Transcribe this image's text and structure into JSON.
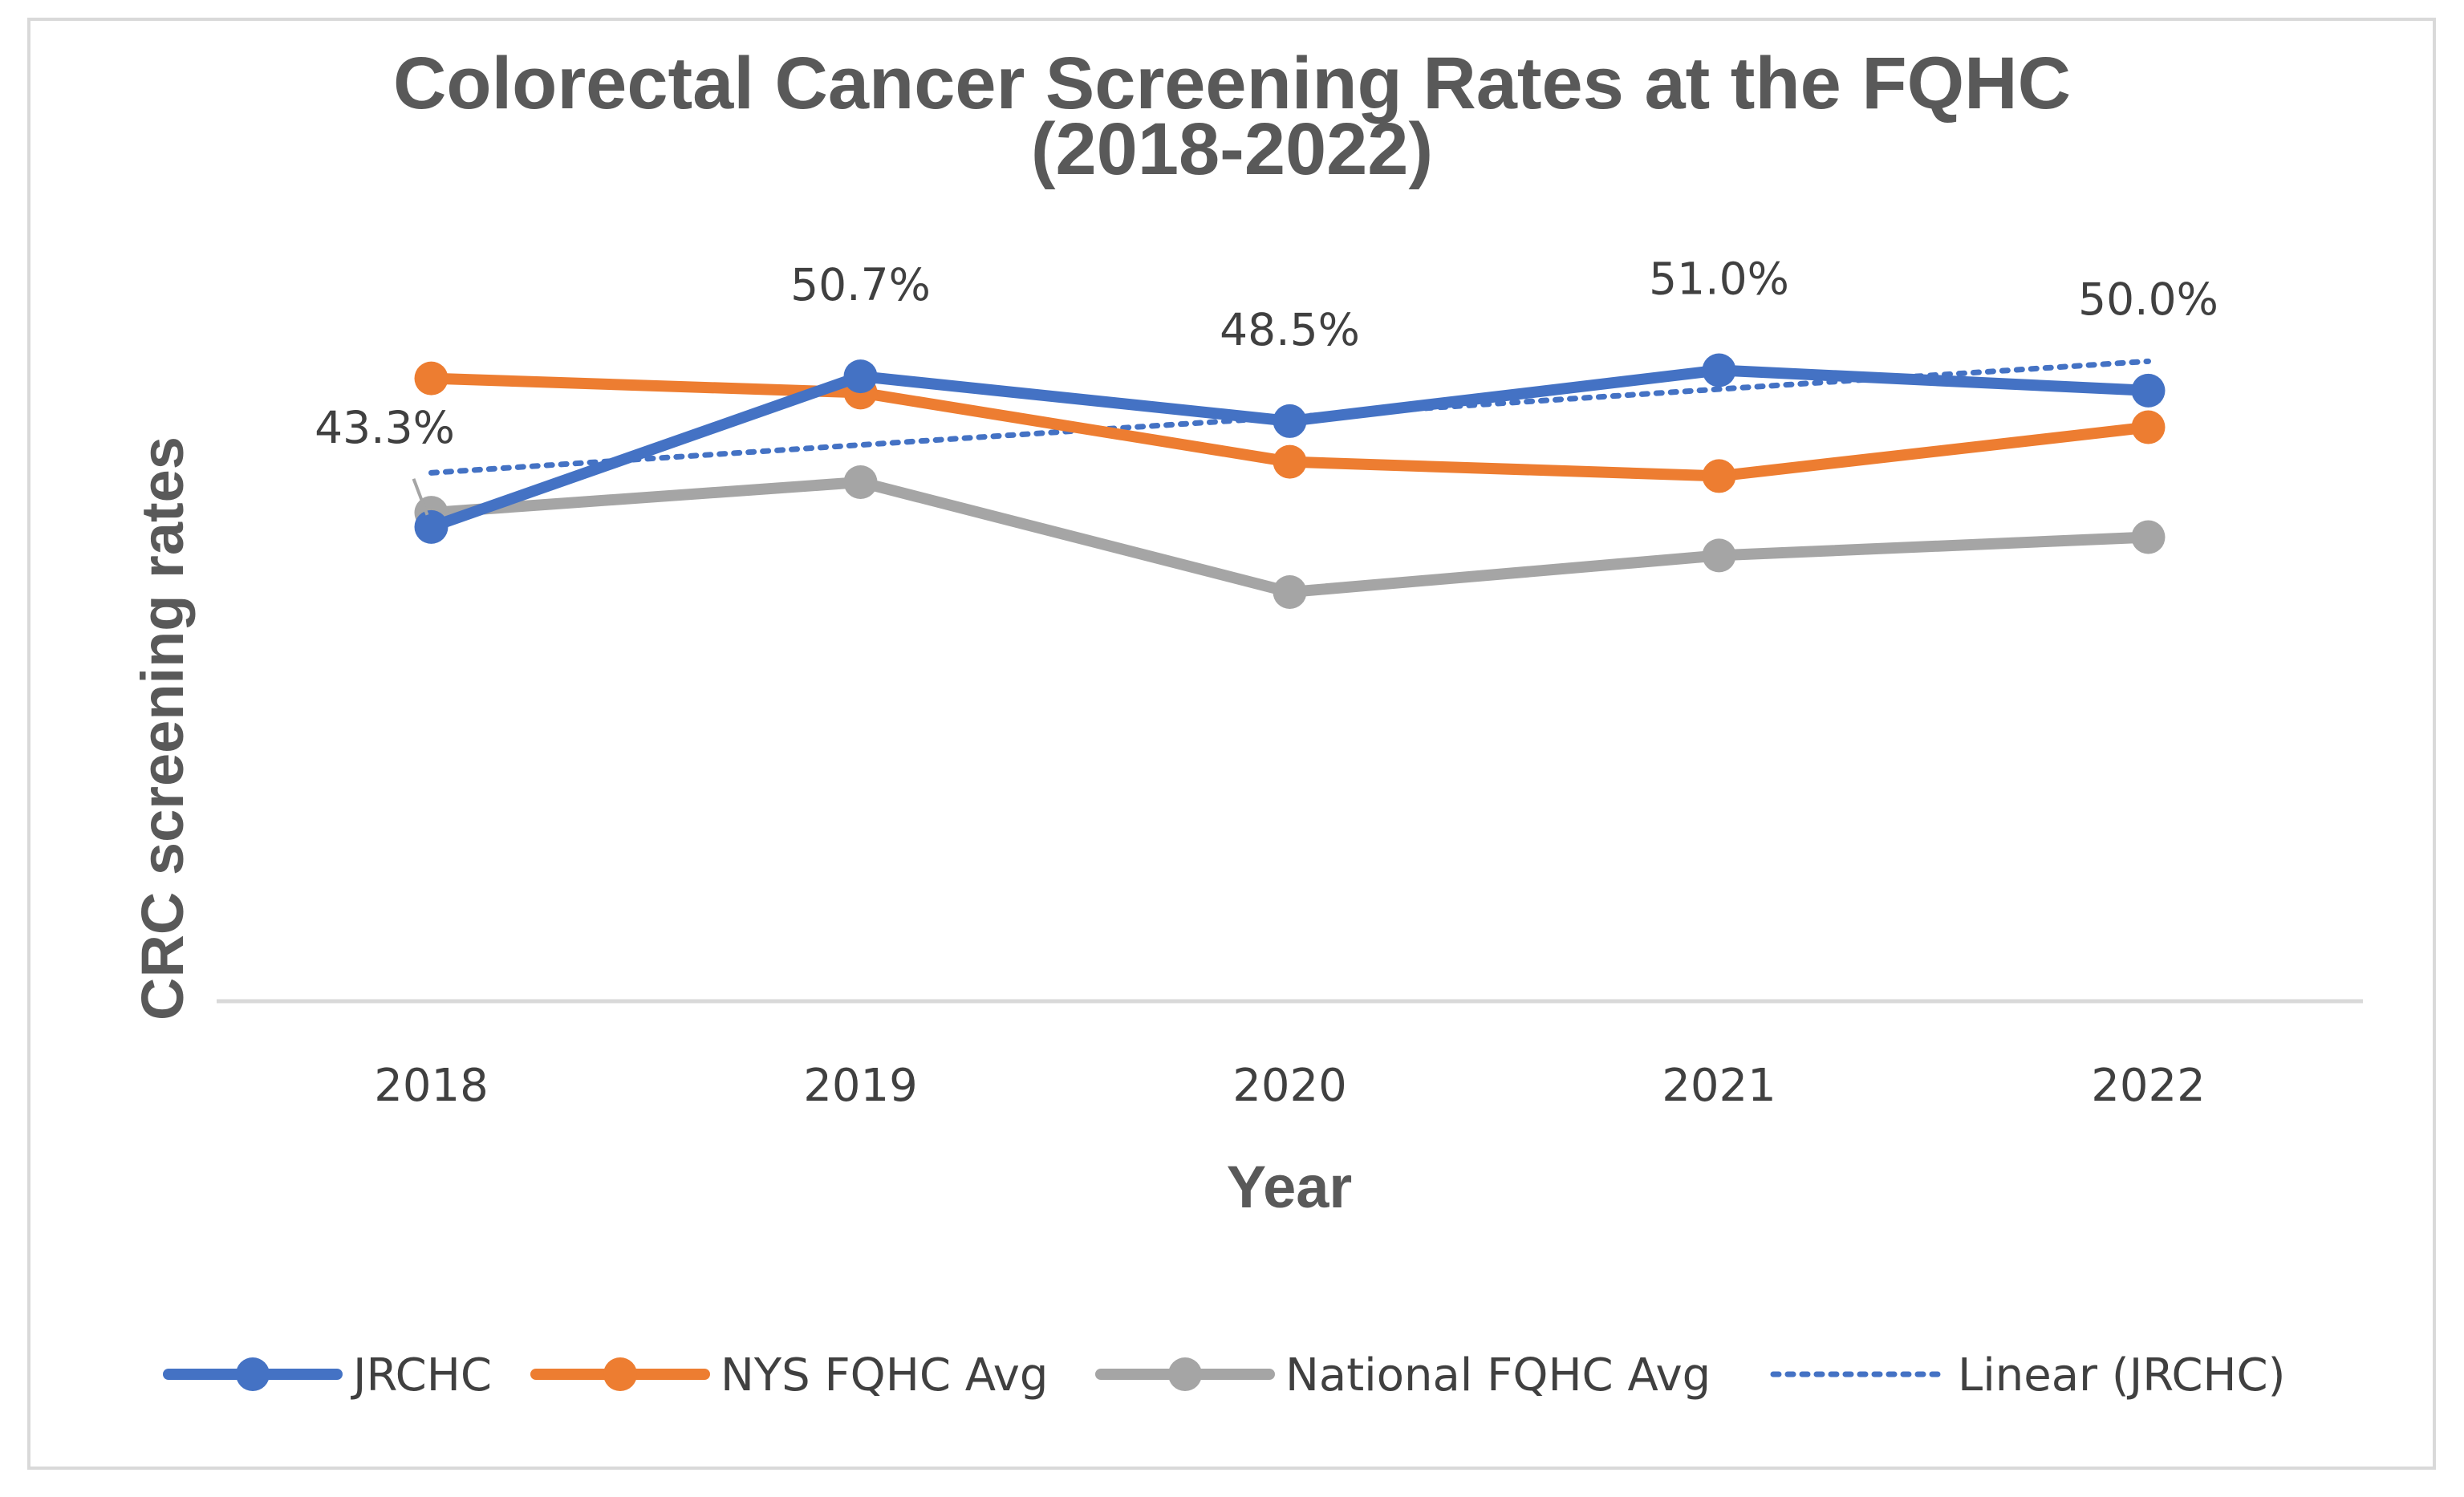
{
  "chart_data": {
    "type": "line",
    "title_line1": "Colorectal Cancer Screening Rates at the FQHC",
    "title_line2": "(2018-2022)",
    "xlabel": "Year",
    "ylabel": "CRC screening rates",
    "ylim": [
      20,
      55
    ],
    "categories": [
      "2018",
      "2019",
      "2020",
      "2021",
      "2022"
    ],
    "series": [
      {
        "name": "JRCHC",
        "color": "#4472c4",
        "values": [
          43.3,
          50.7,
          48.5,
          51.0,
          50.0
        ],
        "labels": [
          "43.3%",
          "50.7%",
          "48.5%",
          "51.0%",
          "50.0%"
        ]
      },
      {
        "name": "NYS FQHC Avg",
        "color": "#ed7d31",
        "values": [
          50.6,
          49.9,
          46.5,
          45.8,
          48.2
        ]
      },
      {
        "name": "National FQHC Avg",
        "color": "#a5a5a5",
        "values": [
          44.0,
          45.5,
          40.1,
          41.9,
          42.8
        ]
      }
    ],
    "trendline": {
      "name": "Linear (JRCHC)",
      "color": "#4472c4",
      "of": "JRCHC",
      "style": "dotted"
    },
    "legend_position": "bottom"
  }
}
